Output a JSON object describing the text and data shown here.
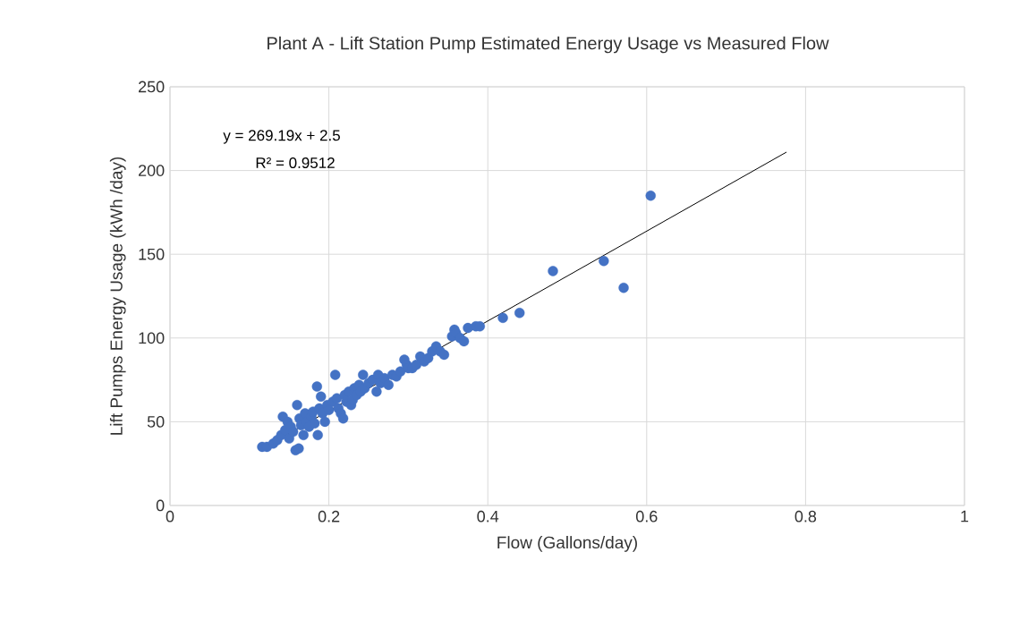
{
  "chart_data": {
    "type": "scatter",
    "title": "Plant A - Lift Station Pump Estimated Energy Usage vs Measured Flow",
    "xlabel": "Flow (Gallons/day)",
    "ylabel": "Lift Pumps Energy Usage (kWh /day)",
    "annotations": [
      "y = 269.19x + 2.5",
      "R² = 0.9512"
    ],
    "xlim": [
      0,
      1
    ],
    "ylim": [
      0,
      250
    ],
    "xticks": [
      0,
      0.2,
      0.4,
      0.6,
      0.8,
      1
    ],
    "yticks": [
      0,
      50,
      100,
      150,
      200,
      250
    ],
    "grid": true,
    "marker": "circle",
    "series": [
      {
        "color": "#4472c4",
        "x": [
          0.116,
          0.122,
          0.13,
          0.135,
          0.14,
          0.142,
          0.145,
          0.148,
          0.15,
          0.152,
          0.155,
          0.158,
          0.16,
          0.162,
          0.163,
          0.165,
          0.168,
          0.17,
          0.172,
          0.175,
          0.178,
          0.18,
          0.182,
          0.185,
          0.186,
          0.188,
          0.19,
          0.192,
          0.195,
          0.198,
          0.2,
          0.205,
          0.208,
          0.21,
          0.212,
          0.215,
          0.218,
          0.22,
          0.222,
          0.225,
          0.228,
          0.23,
          0.232,
          0.235,
          0.238,
          0.24,
          0.243,
          0.245,
          0.25,
          0.255,
          0.26,
          0.262,
          0.265,
          0.27,
          0.275,
          0.28,
          0.285,
          0.29,
          0.295,
          0.298,
          0.3,
          0.305,
          0.31,
          0.315,
          0.32,
          0.325,
          0.33,
          0.335,
          0.34,
          0.345,
          0.355,
          0.358,
          0.36,
          0.365,
          0.37,
          0.375,
          0.385,
          0.39,
          0.419,
          0.44,
          0.482,
          0.546,
          0.571,
          0.605
        ],
        "values": [
          35,
          35,
          37,
          39,
          42,
          53,
          45,
          50,
          40,
          47,
          44,
          33,
          60,
          34,
          52,
          48,
          42,
          55,
          50,
          47,
          53,
          56,
          49,
          71,
          42,
          58,
          65,
          55,
          50,
          60,
          57,
          62,
          78,
          64,
          58,
          55,
          52,
          66,
          62,
          68,
          60,
          63,
          70,
          66,
          72,
          68,
          78,
          70,
          73,
          75,
          68,
          78,
          73,
          76,
          72,
          78,
          77,
          80,
          87,
          84,
          82,
          82,
          84,
          89,
          86,
          88,
          92,
          95,
          92,
          90,
          101,
          105,
          103,
          100,
          98,
          106,
          107,
          107,
          112,
          115,
          140,
          146,
          130,
          185
        ]
      },
      {
        "type": "line",
        "color": "#000000",
        "marker": "none",
        "x": [
          0.116,
          0.776
        ],
        "values": [
          34,
          211
        ]
      }
    ]
  }
}
